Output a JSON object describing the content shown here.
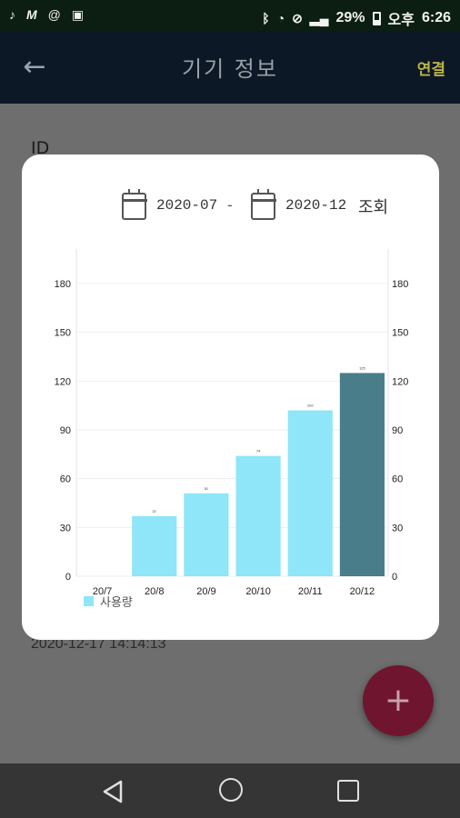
{
  "status_bar": {
    "time": "6:26",
    "ampm": "오후",
    "battery": "29%",
    "icons": [
      "music-note-icon",
      "m-icon",
      "at-icon",
      "image-icon",
      "bluetooth-icon",
      "wifi-icon",
      "mute-icon",
      "signal-icon",
      "battery-icon"
    ]
  },
  "app_bar": {
    "title": "기기 정보",
    "back_icon": "arrow-left-icon",
    "action_label": "연결"
  },
  "page": {
    "id_label": "ID",
    "timestamp": "2020-12-17 14:14:13"
  },
  "dialog": {
    "start_date": "2020-07",
    "separator": "-",
    "end_date": "2020-12",
    "query_label": "조회"
  },
  "chart_data": {
    "type": "bar",
    "categories": [
      "20/7",
      "20/8",
      "20/9",
      "20/10",
      "20/11",
      "20/12"
    ],
    "series": [
      {
        "name": "사용량",
        "values": [
          0,
          37,
          51,
          74,
          102,
          125
        ]
      }
    ],
    "data_labels": [
      "",
      "37",
      "51",
      "74",
      "102",
      "125"
    ],
    "ylim": [
      0,
      180
    ],
    "yticks": [
      0,
      30,
      60,
      90,
      120,
      150,
      180
    ],
    "right_axis": true,
    "grid": true,
    "legend": "bottom-left",
    "colors": {
      "bar": "#8ee6f8",
      "highlight": "#4a7d8a"
    },
    "highlighted_index": 5
  },
  "fab": {
    "icon": "plus-icon",
    "label": "+"
  },
  "nav_bar": {
    "icons": [
      "nav-back-icon",
      "nav-home-icon",
      "nav-recent-icon"
    ]
  }
}
